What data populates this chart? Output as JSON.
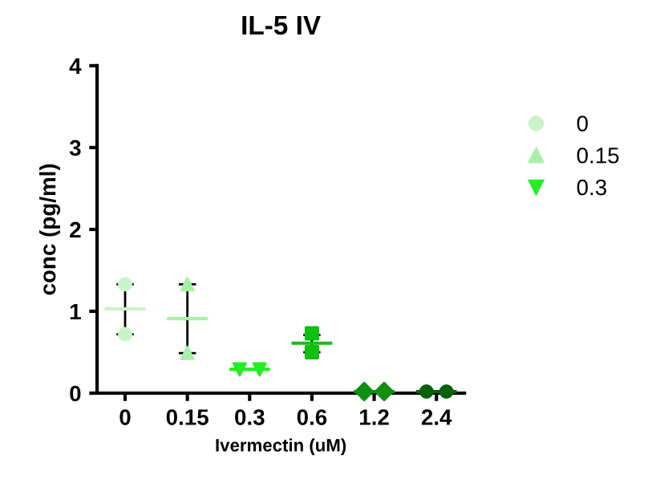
{
  "chart_data": {
    "type": "scatter",
    "title": "IL-5 IV",
    "xlabel": "Ivermectin (uM)",
    "ylabel": "conc (pg/ml)",
    "categories": [
      "0",
      "0.15",
      "0.3",
      "0.6",
      "1.2",
      "2.4"
    ],
    "ylim": [
      0,
      4
    ],
    "yticks": [
      0,
      1,
      2,
      3,
      4
    ],
    "grid": false,
    "legend": "right",
    "series": [
      {
        "type": "box",
        "colors": [
          "#c8f5c8",
          "#a8f0a8",
          "#22ee22",
          "#10c010",
          "#109010",
          "#0a600a"
        ],
        "boxes": [
          {
            "low": 0.72,
            "q1": 1.03,
            "median": 1.03,
            "q3": 1.03,
            "high": 1.33
          },
          {
            "low": 0.49,
            "q1": 0.91,
            "median": 0.91,
            "q3": 0.91,
            "high": 1.33
          },
          {
            "low": 0.29,
            "q1": 0.29,
            "median": 0.29,
            "q3": 0.29,
            "high": 0.29
          },
          {
            "low": 0.5,
            "q1": 0.61,
            "median": 0.61,
            "q3": 0.61,
            "high": 0.71
          },
          {
            "low": 0.02,
            "q1": 0.02,
            "median": 0.02,
            "q3": 0.02,
            "high": 0.02
          },
          {
            "low": 0.02,
            "q1": 0.02,
            "median": 0.02,
            "q3": 0.02,
            "high": 0.02
          }
        ]
      },
      {
        "name": "0",
        "color": "#c8f5c8",
        "marker": "circle",
        "x": [
          "0",
          "0"
        ],
        "values": [
          1.33,
          0.72
        ]
      },
      {
        "name": "0.15",
        "color": "#a8f0a8",
        "marker": "triangle",
        "x": [
          "0.15",
          "0.15"
        ],
        "values": [
          1.33,
          0.49
        ]
      },
      {
        "name": "0.3",
        "color": "#22ee22",
        "marker": "triangle down",
        "x": [
          "0.3",
          "0.3"
        ],
        "values": [
          0.29,
          0.29
        ]
      },
      {
        "color": "#10c010",
        "marker": "square",
        "x": [
          "0.6",
          "0.6"
        ],
        "values": [
          0.73,
          0.5
        ]
      },
      {
        "color": "#109010",
        "marker": "diamond",
        "x": [
          "1.2",
          "1.2"
        ],
        "values": [
          0.02,
          0.02
        ]
      },
      {
        "color": "#0a600a",
        "marker": "circle",
        "x": [
          "2.4",
          "2.4"
        ],
        "values": [
          0.02,
          0.02
        ]
      }
    ]
  }
}
